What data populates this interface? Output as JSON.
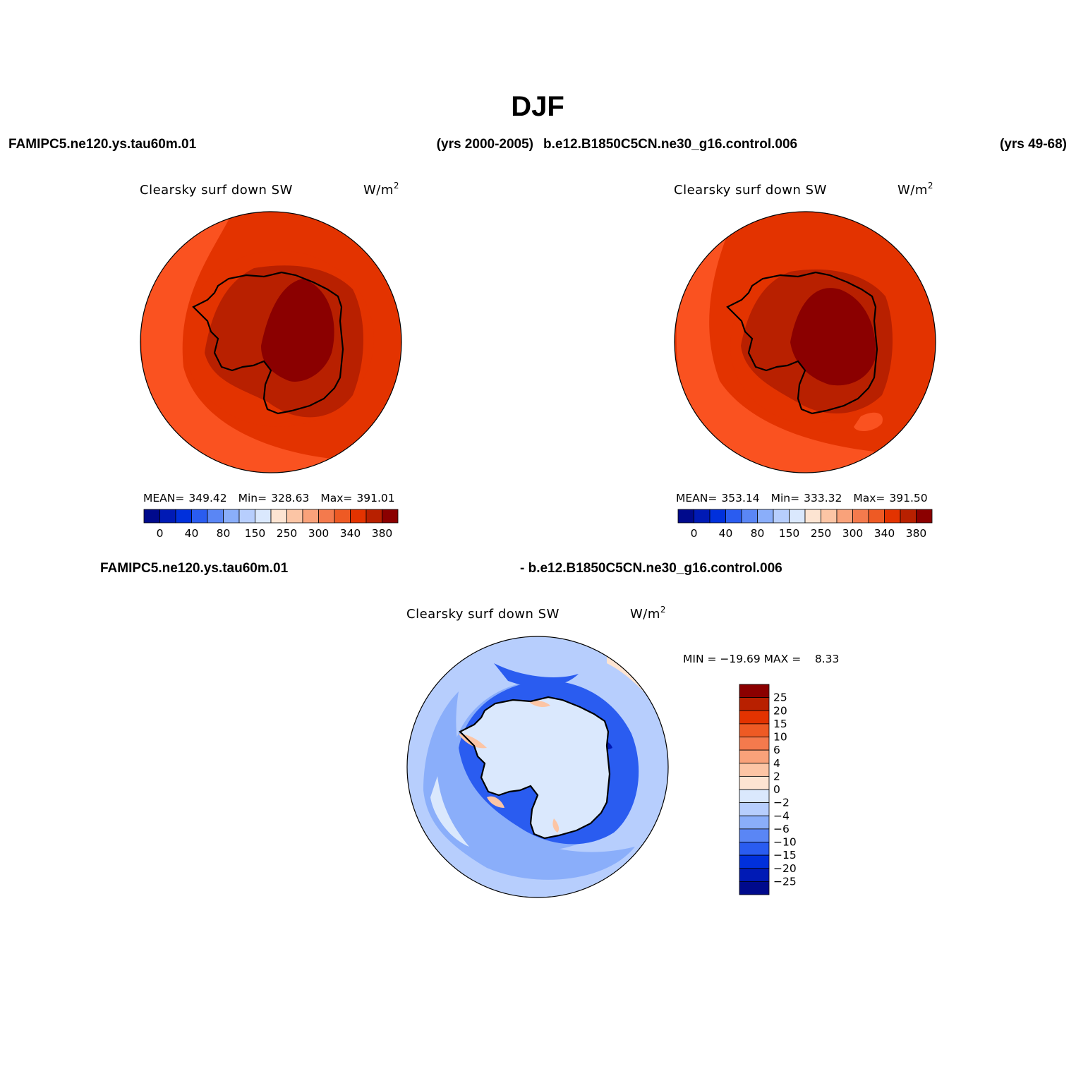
{
  "figure_title": "DJF",
  "headers": {
    "top_left_case": "FAMIPC5.ne120.ys.tau60m.01",
    "top_left_years": "(yrs 2000-2005)",
    "top_right_case": "b.e12.B1850C5CN.ne30_g16.control.006",
    "top_right_years": "(yrs 49-68)",
    "diff_left_case": "FAMIPC5.ne120.ys.tau60m.01",
    "diff_right_case": "- b.e12.B1850C5CN.ne30_g16.control.006"
  },
  "panels": [
    {
      "id": "case1",
      "variable": "Clearsky surf down SW",
      "units": "W/m",
      "units_sup": "2",
      "stats": {
        "mean_label": "MEAN=",
        "mean": "349.42",
        "min_label": "Min=",
        "min": "328.63",
        "max_label": "Max=",
        "max": "391.01"
      }
    },
    {
      "id": "case2",
      "variable": "Clearsky surf down SW",
      "units": "W/m",
      "units_sup": "2",
      "stats": {
        "mean_label": "MEAN=",
        "mean": "353.14",
        "min_label": "Min=",
        "min": "333.32",
        "max_label": "Max=",
        "max": "391.50"
      }
    },
    {
      "id": "difference",
      "variable": "Clearsky surf down SW",
      "units": "W/m",
      "units_sup": "2",
      "stats_text": "MIN = −19.69 MAX =    8.33"
    }
  ],
  "colorbar_main": {
    "colors": [
      "#000a8c",
      "#001ab5",
      "#0030dc",
      "#2a5cf0",
      "#5a86f5",
      "#8aaefa",
      "#b7cefd",
      "#dae8fd",
      "#fde4d2",
      "#fcc5a5",
      "#f9a27a",
      "#f47a4d",
      "#ee5a24",
      "#e33300",
      "#b82000",
      "#8b0000"
    ],
    "tick_labels": [
      "0",
      "40",
      "80",
      "150",
      "250",
      "300",
      "340",
      "380"
    ]
  },
  "colorbar_diff": {
    "colors_top_to_bottom": [
      "#8b0000",
      "#b82000",
      "#e33300",
      "#ee5a24",
      "#f47a4d",
      "#f9a27a",
      "#fcc5a5",
      "#fde4d2",
      "#dae8fd",
      "#b7cefd",
      "#8aaefa",
      "#5a86f5",
      "#2a5cf0",
      "#0030dc",
      "#001ab5",
      "#000a8c"
    ],
    "tick_labels_top_to_bottom": [
      "25",
      "20",
      "15",
      "10",
      "6",
      "4",
      "2",
      "0",
      "−2",
      "−4",
      "−6",
      "−10",
      "−15",
      "−20",
      "−25"
    ]
  },
  "map_colors": {
    "ocean_case1": "#fa5220",
    "ring_case": "#e33300",
    "coast_band": "#e33300",
    "plateau_outer": "#b82000",
    "plateau_core": "#8b0000",
    "diff_ocean": "#b7cefd",
    "diff_ring": "#8aaefa",
    "diff_coast": "#2a5cf0",
    "diff_land": "#dae8fd",
    "diff_pos": "#fcc5a5"
  }
}
